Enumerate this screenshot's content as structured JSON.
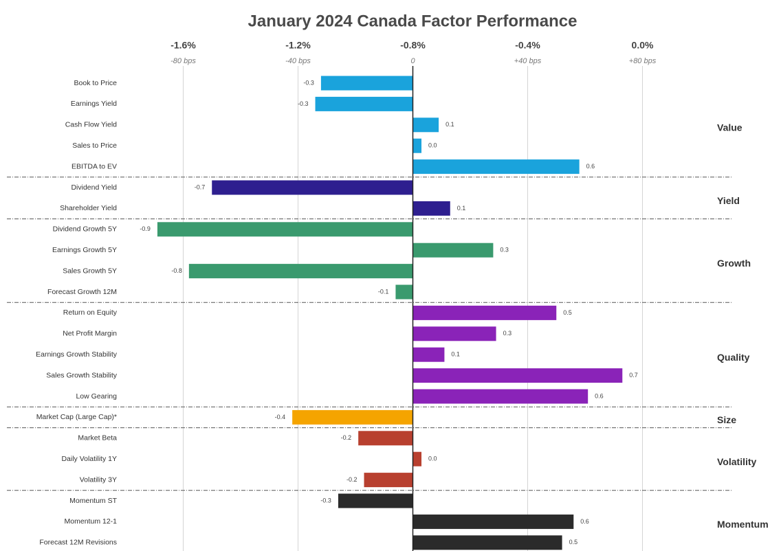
{
  "chart_data": {
    "type": "bar",
    "orientation": "horizontal",
    "title": "January 2024 Canada Factor Performance",
    "xlim": [
      -1.0,
      1.0
    ],
    "xticks": [
      {
        "value": -0.8,
        "label": "-1.6%"
      },
      {
        "value": -0.4,
        "label": "-1.2%"
      },
      {
        "value": 0,
        "label": "-0.8%"
      },
      {
        "value": 0.4,
        "label": "-0.4%"
      },
      {
        "value": 0.8,
        "label": "0.0%"
      }
    ],
    "xticks_bps": [
      {
        "value": -0.8,
        "label": "-80 bps"
      },
      {
        "value": -0.4,
        "label": "-40 bps"
      },
      0,
      {
        "value": 0.4,
        "label": "+40 bps"
      },
      {
        "value": 0.8,
        "label": "+80 bps"
      }
    ],
    "grid": true,
    "groups": [
      {
        "name": "Value",
        "color": "#1aa3dc",
        "categories": [
          "Book to Price",
          "Earnings Yield",
          "Cash Flow Yield",
          "Sales to Price",
          "EBITDA to EV"
        ],
        "values": [
          -0.32,
          -0.34,
          0.09,
          0.03,
          0.58
        ],
        "value_labels": [
          "-0.3",
          "-0.3",
          "0.1",
          "0.0",
          "0.6"
        ]
      },
      {
        "name": "Yield",
        "color": "#2e1f8f",
        "categories": [
          "Dividend Yield",
          "Shareholder Yield"
        ],
        "values": [
          -0.7,
          0.13
        ],
        "value_labels": [
          "-0.7",
          "0.1"
        ]
      },
      {
        "name": "Growth",
        "color": "#3a9a6e",
        "categories": [
          "Dividend Growth 5Y",
          "Earnings Growth 5Y",
          "Sales Growth 5Y",
          "Forecast Growth 12M"
        ],
        "values": [
          -0.89,
          0.28,
          -0.78,
          -0.06
        ],
        "value_labels": [
          "-0.9",
          "0.3",
          "-0.8",
          "-0.1"
        ]
      },
      {
        "name": "Quality",
        "color": "#8a23b8",
        "categories": [
          "Return on Equity",
          "Net Profit Margin",
          "Earnings Growth Stability",
          "Sales Growth Stability",
          "Low Gearing"
        ],
        "values": [
          0.5,
          0.29,
          0.11,
          0.73,
          0.61
        ],
        "value_labels": [
          "0.5",
          "0.3",
          "0.1",
          "0.7",
          "0.6"
        ]
      },
      {
        "name": "Size",
        "color": "#f5a400",
        "categories": [
          "Market Cap (Large Cap)*"
        ],
        "values": [
          -0.42
        ],
        "value_labels": [
          "-0.4"
        ]
      },
      {
        "name": "Volatility",
        "color": "#b8402f",
        "categories": [
          "Market Beta",
          "Daily Volatility 1Y",
          "Volatility 3Y"
        ],
        "values": [
          -0.19,
          0.03,
          -0.17
        ],
        "value_labels": [
          "-0.2",
          "0.0",
          "-0.2"
        ]
      },
      {
        "name": "Momentum",
        "color": "#2b2b2b",
        "categories": [
          "Momentum ST",
          "Momentum 12-1",
          "Forecast 12M Revisions"
        ],
        "values": [
          -0.26,
          0.56,
          0.52
        ],
        "value_labels": [
          "-0.3",
          "0.6",
          "0.5"
        ]
      }
    ]
  }
}
